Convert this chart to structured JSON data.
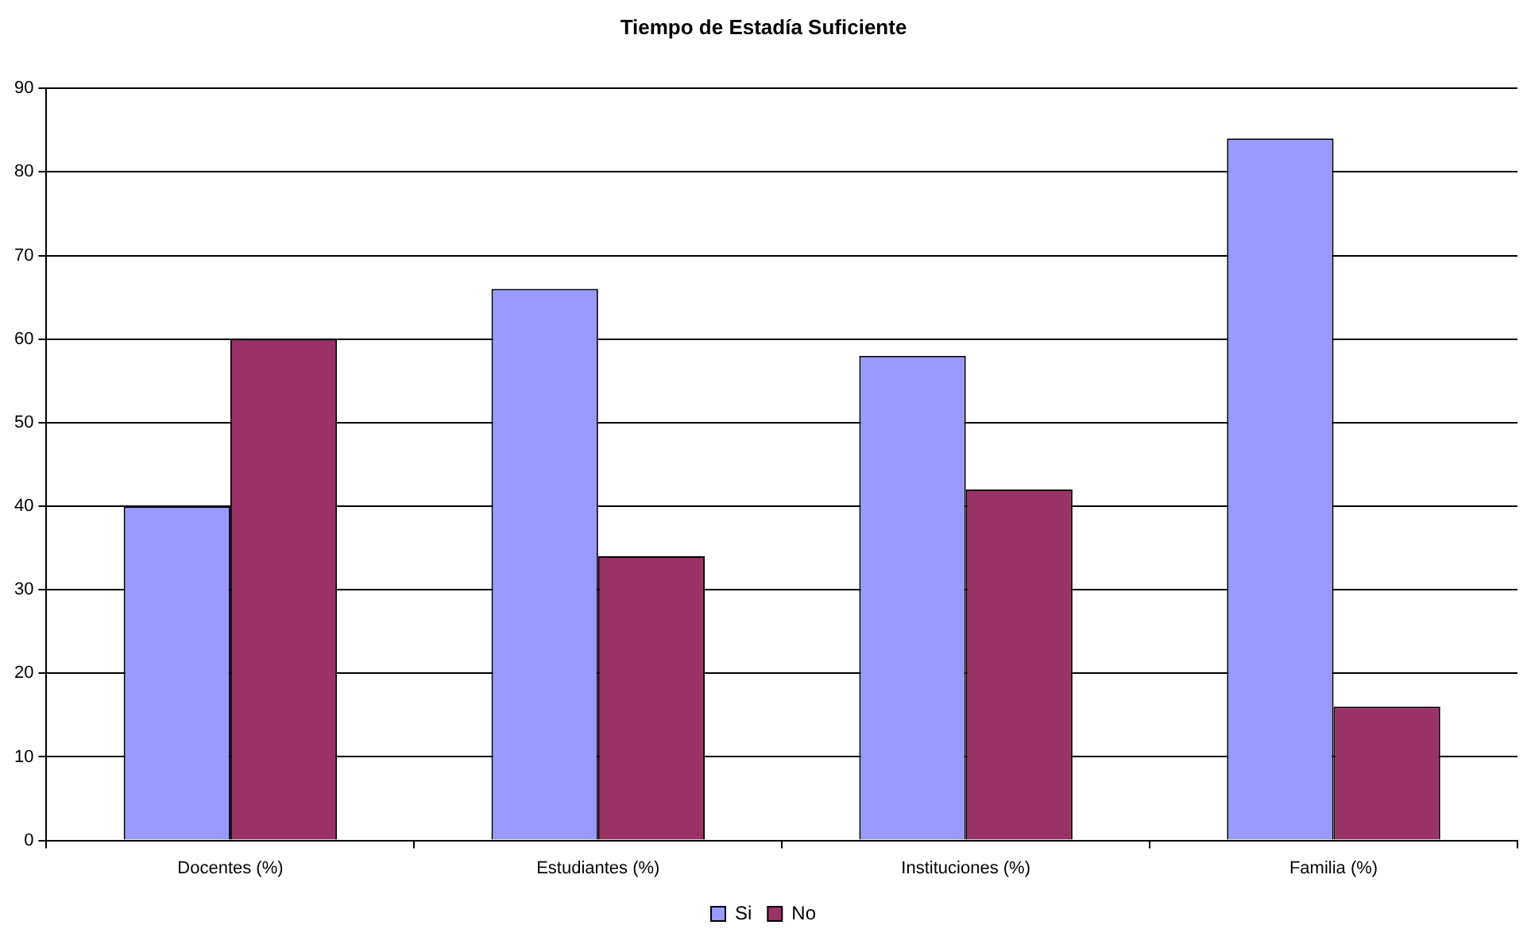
{
  "chart_data": {
    "type": "bar",
    "title": "Tiempo de Estadía Suficiente",
    "categories": [
      "Docentes (%)",
      "Estudiantes (%)",
      "Instituciones (%)",
      "Familia (%)"
    ],
    "series": [
      {
        "name": "Si",
        "color": "#9999ff",
        "values": [
          40,
          66,
          58,
          84
        ]
      },
      {
        "name": "No",
        "color": "#993366",
        "values": [
          60,
          34,
          42,
          16
        ]
      }
    ],
    "ylim": [
      0,
      90
    ],
    "yticks": [
      0,
      10,
      20,
      30,
      40,
      50,
      60,
      70,
      80,
      90
    ],
    "grid": "y",
    "legend": "bottom"
  }
}
